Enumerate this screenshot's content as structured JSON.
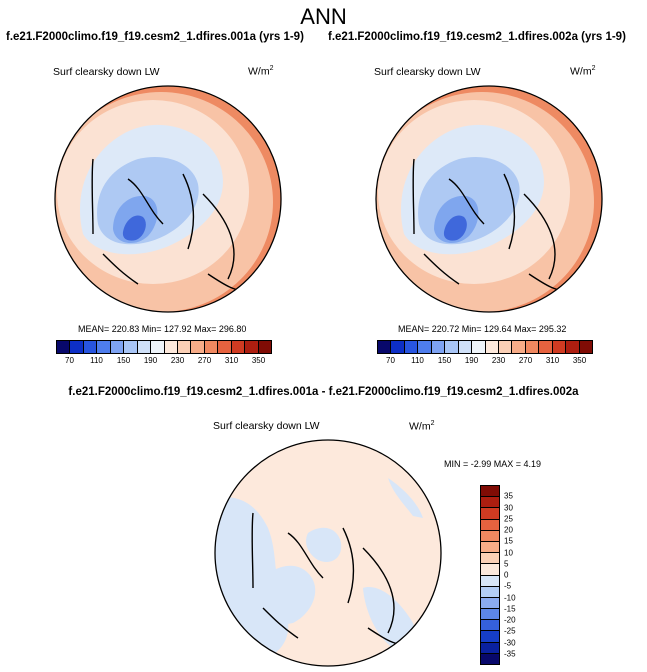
{
  "page": {
    "title": "ANN"
  },
  "panels": {
    "left": {
      "case_title": "f.e21.F2000climo.f19_f19.cesm2_1.dfires.001a (yrs 1-9)",
      "variable_label": "Surf clearsky down LW",
      "units_base": "W/m",
      "units_exp": "2",
      "stats": "MEAN= 220.83  Min= 127.92  Max= 296.80"
    },
    "right": {
      "case_title": "f.e21.F2000climo.f19_f19.cesm2_1.dfires.002a (yrs 1-9)",
      "variable_label": "Surf clearsky down LW",
      "units_base": "W/m",
      "units_exp": "2",
      "stats": "MEAN= 220.72  Min= 129.64  Max= 295.32"
    },
    "diff": {
      "case_title": "f.e21.F2000climo.f19_f19.cesm2_1.dfires.001a - f.e21.F2000climo.f19_f19.cesm2_1.dfires.002a",
      "variable_label": "Surf clearsky down LW",
      "units_base": "W/m",
      "units_exp": "2",
      "stats": "MIN =  -2.99 MAX =   4.19"
    }
  },
  "colorbar_abs": {
    "ticks": [
      "70",
      "110",
      "150",
      "190",
      "230",
      "270",
      "310",
      "350"
    ],
    "colors": [
      "#08086b",
      "#0d2fc6",
      "#2855e0",
      "#4e7ded",
      "#7ea3f3",
      "#a8c5f6",
      "#cfe0f8",
      "#eef4fa",
      "#fde9dc",
      "#fbd0b6",
      "#f7ac88",
      "#f08860",
      "#e6623f",
      "#d03b22",
      "#ad1e10",
      "#800c05"
    ]
  },
  "colorbar_diff": {
    "ticks": [
      "35",
      "30",
      "25",
      "20",
      "15",
      "10",
      "5",
      "0",
      "-5",
      "-10",
      "-15",
      "-20",
      "-25",
      "-30",
      "-35"
    ],
    "colors": [
      "#800c05",
      "#ad1e10",
      "#d03b22",
      "#e6623f",
      "#f08860",
      "#f7ac88",
      "#fbd0b6",
      "#fde9dc",
      "#d8e6f8",
      "#b3cdf5",
      "#8aaaf0",
      "#5d86e8",
      "#3560dc",
      "#163ec8",
      "#0a21a0",
      "#08086b"
    ]
  },
  "map_colors": {
    "abs_outer": "#ee8a62",
    "abs_mid": "#f8c3a6",
    "abs_inner": "#fbe2d3",
    "abs_light_blue": "#dde9f8",
    "abs_blue": "#aec9f3",
    "abs_mid_blue": "#7fa6ee",
    "abs_deep_blue": "#3f68db",
    "diff_bg": "#fde9dc",
    "diff_blue": "#d8e6f8"
  }
}
